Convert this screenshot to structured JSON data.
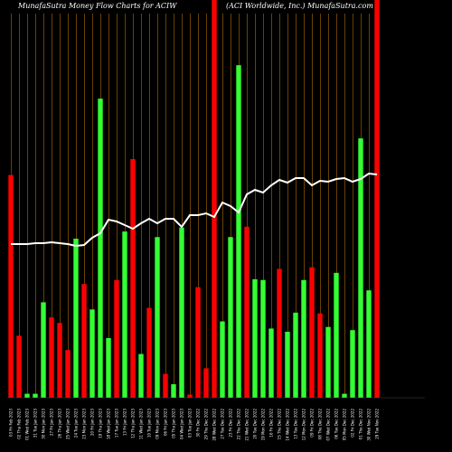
{
  "header": {
    "left_title": "MunafaSutra  Money  Flow  Charts for ACIW",
    "right_title": "(ACI Worldwide,  Inc.) MunafaSutra.com"
  },
  "colors": {
    "background": "#000000",
    "up_bar": "#33ff33",
    "down_bar": "#ff0000",
    "price_line": "#ffffff",
    "grid_line": "#b36b00"
  },
  "chart_data": {
    "type": "bar",
    "title": "MunafaSutra  Money  Flow  Charts for ACIW",
    "subtitle": "(ACI Worldwide,  Inc.) MunafaSutra.com",
    "grid": "vertical",
    "categories": [
      "03 Fri Feb 2023",
      "02 Thu Feb 2023",
      "01 Wed Feb 2023",
      "31 Tue Jan 2023",
      "30 Mon Jan 2023",
      "27 Fri Jan 2023",
      "26 Thu Jan 2023",
      "25 Wed Jan 2023",
      "24 Tue Jan 2023",
      "23 Mon Jan 2023",
      "20 Fri Jan 2023",
      "19 Thu Jan 2023",
      "18 Wed Jan 2023",
      "17 Tue Jan 2023",
      "13 Fri Jan 2023",
      "12 Thu Jan 2023",
      "11 Wed Jan 2023",
      "10 Tue Jan 2023",
      "09 Mon Jan 2023",
      "06 Fri Jan 2023",
      "05 Thu Jan 2023",
      "04 Wed Jan 2023",
      "03 Tue Jan 2023",
      "30 Fri Dec 2022",
      "29 Thu Dec 2022",
      "28 Wed Dec 2022",
      "27 Tue Dec 2022",
      "23 Fri Dec 2022",
      "22 Thu Dec 2022",
      "21 Wed Dec 2022",
      "20 Tue Dec 2022",
      "19 Mon Dec 2022",
      "16 Fri Dec 2022",
      "15 Thu Dec 2022",
      "14 Wed Dec 2022",
      "13 Tue Dec 2022",
      "12 Mon Dec 2022",
      "09 Fri Dec 2022",
      "08 Thu Dec 2022",
      "07 Wed Dec 2022",
      "06 Tue Dec 2022",
      "05 Mon Dec 2022",
      "02 Fri Dec 2022",
      "01 Thu Dec 2022",
      "30 Wed Nov 2022",
      "29 Tue Nov 2022"
    ],
    "series": [
      {
        "values": [
          280,
          78,
          5,
          5,
          120,
          101,
          94,
          60,
          200,
          143,
          111,
          376,
          75,
          148,
          209,
          300,
          55,
          113,
          202,
          30,
          17,
          214,
          4,
          139,
          37,
          500,
          96,
          202,
          418,
          215,
          149,
          148,
          87,
          162,
          83,
          107,
          148,
          164,
          106,
          89,
          157,
          5,
          85,
          326,
          135,
          500
        ],
        "colors": [
          "red",
          "red",
          "green",
          "green",
          "green",
          "red",
          "red",
          "red",
          "green",
          "red",
          "green",
          "green",
          "green",
          "red",
          "green",
          "red",
          "green",
          "red",
          "green",
          "red",
          "green",
          "green",
          "red",
          "red",
          "red",
          "red",
          "green",
          "green",
          "green",
          "red",
          "green",
          "green",
          "green",
          "red",
          "green",
          "green",
          "green",
          "red",
          "red",
          "green",
          "green",
          "green",
          "green",
          "green",
          "green",
          "red"
        ]
      },
      {
        "type": "line",
        "values": [
          270,
          270,
          270,
          269,
          269,
          268,
          269,
          270,
          272,
          271,
          263,
          258,
          243,
          245,
          249,
          253,
          247,
          242,
          247,
          242,
          242,
          251,
          238,
          238,
          236,
          240,
          224,
          228,
          235,
          215,
          210,
          213,
          205,
          199,
          202,
          197,
          197,
          205,
          200,
          201,
          198,
          197,
          201,
          198,
          192,
          193
        ]
      }
    ]
  }
}
